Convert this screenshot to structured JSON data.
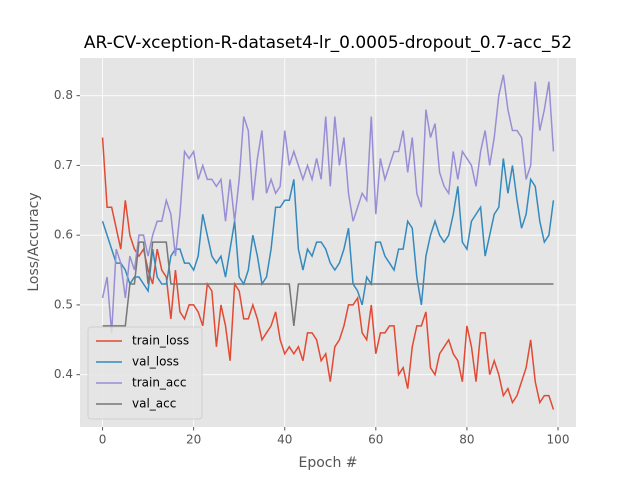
{
  "chart_data": {
    "type": "line",
    "title": "AR-CV-xception-R-dataset4-lr_0.0005-dropout_0.7-acc_52",
    "xlabel": "Epoch #",
    "ylabel": "Loss/Accuracy",
    "x": [
      0,
      1,
      2,
      3,
      4,
      5,
      6,
      7,
      8,
      9,
      10,
      11,
      12,
      13,
      14,
      15,
      16,
      17,
      18,
      19,
      20,
      21,
      22,
      23,
      24,
      25,
      26,
      27,
      28,
      29,
      30,
      31,
      32,
      33,
      34,
      35,
      36,
      37,
      38,
      39,
      40,
      41,
      42,
      43,
      44,
      45,
      46,
      47,
      48,
      49,
      50,
      51,
      52,
      53,
      54,
      55,
      56,
      57,
      58,
      59,
      60,
      61,
      62,
      63,
      64,
      65,
      66,
      67,
      68,
      69,
      70,
      71,
      72,
      73,
      74,
      75,
      76,
      77,
      78,
      79,
      80,
      81,
      82,
      83,
      84,
      85,
      86,
      87,
      88,
      89,
      90,
      91,
      92,
      93,
      94,
      95,
      96,
      97,
      98,
      99
    ],
    "series": [
      {
        "name": "train_loss",
        "color": "#E24A33",
        "values": [
          0.74,
          0.64,
          0.64,
          0.61,
          0.58,
          0.65,
          0.6,
          0.58,
          0.57,
          0.58,
          0.55,
          0.53,
          0.58,
          0.55,
          0.54,
          0.48,
          0.55,
          0.49,
          0.48,
          0.5,
          0.5,
          0.49,
          0.47,
          0.53,
          0.52,
          0.44,
          0.5,
          0.47,
          0.42,
          0.53,
          0.52,
          0.48,
          0.48,
          0.5,
          0.48,
          0.45,
          0.46,
          0.47,
          0.49,
          0.45,
          0.43,
          0.44,
          0.43,
          0.44,
          0.42,
          0.46,
          0.46,
          0.45,
          0.42,
          0.43,
          0.39,
          0.44,
          0.45,
          0.47,
          0.5,
          0.5,
          0.51,
          0.46,
          0.45,
          0.5,
          0.43,
          0.46,
          0.46,
          0.47,
          0.47,
          0.4,
          0.41,
          0.38,
          0.44,
          0.47,
          0.47,
          0.49,
          0.41,
          0.4,
          0.43,
          0.44,
          0.45,
          0.43,
          0.42,
          0.39,
          0.47,
          0.44,
          0.39,
          0.46,
          0.46,
          0.4,
          0.42,
          0.4,
          0.37,
          0.38,
          0.36,
          0.37,
          0.39,
          0.41,
          0.45,
          0.39,
          0.36,
          0.37,
          0.37,
          0.35
        ]
      },
      {
        "name": "val_loss",
        "color": "#348ABD",
        "values": [
          0.62,
          0.6,
          0.58,
          0.56,
          0.56,
          0.55,
          0.53,
          0.54,
          0.54,
          0.53,
          0.52,
          0.58,
          0.54,
          0.53,
          0.53,
          0.57,
          0.58,
          0.58,
          0.56,
          0.56,
          0.55,
          0.57,
          0.63,
          0.6,
          0.57,
          0.56,
          0.57,
          0.54,
          0.58,
          0.62,
          0.54,
          0.53,
          0.55,
          0.6,
          0.57,
          0.53,
          0.54,
          0.58,
          0.64,
          0.64,
          0.65,
          0.65,
          0.68,
          0.58,
          0.55,
          0.58,
          0.57,
          0.59,
          0.59,
          0.58,
          0.56,
          0.55,
          0.56,
          0.58,
          0.61,
          0.53,
          0.52,
          0.5,
          0.54,
          0.53,
          0.59,
          0.59,
          0.57,
          0.56,
          0.55,
          0.58,
          0.58,
          0.62,
          0.61,
          0.54,
          0.5,
          0.57,
          0.6,
          0.62,
          0.6,
          0.59,
          0.6,
          0.63,
          0.67,
          0.59,
          0.58,
          0.62,
          0.63,
          0.64,
          0.57,
          0.6,
          0.63,
          0.64,
          0.71,
          0.66,
          0.7,
          0.65,
          0.61,
          0.63,
          0.68,
          0.67,
          0.62,
          0.59,
          0.6,
          0.65
        ]
      },
      {
        "name": "train_acc",
        "color": "#988ED5",
        "values": [
          0.51,
          0.54,
          0.46,
          0.58,
          0.56,
          0.51,
          0.57,
          0.55,
          0.6,
          0.6,
          0.57,
          0.6,
          0.62,
          0.62,
          0.65,
          0.63,
          0.57,
          0.63,
          0.72,
          0.71,
          0.72,
          0.68,
          0.7,
          0.68,
          0.68,
          0.67,
          0.68,
          0.62,
          0.68,
          0.62,
          0.68,
          0.77,
          0.75,
          0.65,
          0.71,
          0.75,
          0.66,
          0.68,
          0.66,
          0.67,
          0.75,
          0.7,
          0.72,
          0.7,
          0.68,
          0.7,
          0.68,
          0.71,
          0.68,
          0.77,
          0.67,
          0.77,
          0.7,
          0.74,
          0.66,
          0.62,
          0.64,
          0.66,
          0.65,
          0.77,
          0.63,
          0.71,
          0.68,
          0.7,
          0.72,
          0.72,
          0.75,
          0.69,
          0.74,
          0.66,
          0.64,
          0.78,
          0.74,
          0.76,
          0.69,
          0.67,
          0.66,
          0.72,
          0.68,
          0.72,
          0.71,
          0.7,
          0.67,
          0.72,
          0.75,
          0.7,
          0.74,
          0.8,
          0.83,
          0.78,
          0.75,
          0.75,
          0.74,
          0.68,
          0.7,
          0.82,
          0.75,
          0.78,
          0.82,
          0.72
        ]
      },
      {
        "name": "val_acc",
        "color": "#777777",
        "values": [
          0.47,
          0.47,
          0.47,
          0.47,
          0.47,
          0.47,
          0.53,
          0.53,
          0.59,
          0.59,
          0.53,
          0.59,
          0.59,
          0.59,
          0.59,
          0.53,
          0.53,
          0.53,
          0.53,
          0.53,
          0.53,
          0.53,
          0.53,
          0.53,
          0.53,
          0.53,
          0.53,
          0.53,
          0.53,
          0.53,
          0.53,
          0.53,
          0.53,
          0.53,
          0.53,
          0.53,
          0.53,
          0.53,
          0.53,
          0.53,
          0.53,
          0.53,
          0.47,
          0.53,
          0.53,
          0.53,
          0.53,
          0.53,
          0.53,
          0.53,
          0.53,
          0.53,
          0.53,
          0.53,
          0.53,
          0.53,
          0.53,
          0.53,
          0.53,
          0.53,
          0.53,
          0.53,
          0.53,
          0.53,
          0.53,
          0.53,
          0.53,
          0.53,
          0.53,
          0.53,
          0.53,
          0.53,
          0.53,
          0.53,
          0.53,
          0.53,
          0.53,
          0.53,
          0.53,
          0.53,
          0.53,
          0.53,
          0.53,
          0.53,
          0.53,
          0.53,
          0.53,
          0.53,
          0.53,
          0.53,
          0.53,
          0.53,
          0.53,
          0.53,
          0.53,
          0.53,
          0.53,
          0.53,
          0.53,
          0.53
        ]
      }
    ],
    "xlim": [
      -4.95,
      103.95
    ],
    "ylim": [
      0.325,
      0.854
    ],
    "xticks": [
      0,
      20,
      40,
      60,
      80,
      100
    ],
    "yticks": [
      0.4,
      0.5,
      0.6,
      0.7,
      0.8
    ],
    "grid": true,
    "legend": "lower left"
  }
}
